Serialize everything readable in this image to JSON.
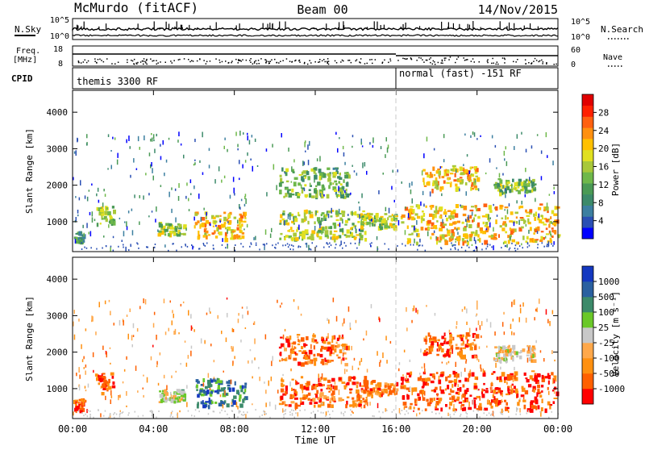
{
  "header": {
    "station": "McMurdo (fitACF)",
    "beam": "Beam 00",
    "date": "14/Nov/2015"
  },
  "top_panels": {
    "nsky": {
      "left_label": "N.Sky",
      "left_ticks": [
        "10^5",
        "10^0"
      ],
      "right_label": "N.Search",
      "right_ticks": [
        "10^5",
        "10^0"
      ]
    },
    "freq": {
      "left_label": "Freq.",
      "left_unit": "[MHz]",
      "left_ticks": [
        "18",
        "8"
      ],
      "right_label": "Nave",
      "right_ticks": [
        "60",
        "0"
      ]
    },
    "cpid": {
      "label": "CPID",
      "segments": [
        {
          "label": "themis 3300 RF",
          "start_hour": 0
        },
        {
          "label": "normal (fast) -151 RF",
          "start_hour": 16
        }
      ]
    }
  },
  "chart_data": [
    {
      "type": "heatmap",
      "name": "power",
      "ylabel": "Slant Range [km]",
      "yticks": [
        1000,
        2000,
        3000,
        4000
      ],
      "ylim": [
        180,
        4600
      ],
      "xlim_hours": [
        0,
        24
      ],
      "colorbar": {
        "label": "Power [dB]",
        "ticks": [
          "4",
          "8",
          "12",
          "16",
          "20",
          "24",
          "28"
        ],
        "range": [
          0,
          32
        ],
        "colors": [
          "#0000ff",
          "#2a4fb4",
          "#3c7fa0",
          "#3c8a6a",
          "#4a9a55",
          "#6fb84a",
          "#a8c83a",
          "#e0e020",
          "#ffc000",
          "#ff9010",
          "#ff6010",
          "#ff2000",
          "#e00000"
        ]
      },
      "echo_regions": [
        {
          "t0": 0.0,
          "t1": 0.6,
          "r0": 450,
          "r1": 750,
          "level": 0.3
        },
        {
          "t0": 1.1,
          "t1": 2.0,
          "r0": 900,
          "r1": 1450,
          "level": 0.5
        },
        {
          "t0": 4.2,
          "t1": 5.5,
          "r0": 650,
          "r1": 1000,
          "level": 0.5
        },
        {
          "t0": 6.0,
          "t1": 8.5,
          "r0": 550,
          "r1": 1300,
          "level": 0.65
        },
        {
          "t0": 10.2,
          "t1": 14.5,
          "r0": 550,
          "r1": 1350,
          "level": 0.5
        },
        {
          "t0": 10.2,
          "t1": 13.6,
          "r0": 1700,
          "r1": 2500,
          "level": 0.4
        },
        {
          "t0": 14.2,
          "t1": 16.0,
          "r0": 850,
          "r1": 1250,
          "level": 0.5
        },
        {
          "t0": 16.2,
          "t1": 24.0,
          "r0": 450,
          "r1": 1500,
          "level": 0.65
        },
        {
          "t0": 17.3,
          "t1": 20.0,
          "r0": 1900,
          "r1": 2550,
          "level": 0.65
        },
        {
          "t0": 20.8,
          "t1": 22.8,
          "r0": 1800,
          "r1": 2200,
          "level": 0.45
        }
      ]
    },
    {
      "type": "heatmap",
      "name": "velocity",
      "ylabel": "Slant Range [km]",
      "yticks": [
        1000,
        2000,
        3000,
        4000
      ],
      "ylim": [
        180,
        4600
      ],
      "xlim_hours": [
        0,
        24
      ],
      "xticks": [
        "00:00",
        "04:00",
        "08:00",
        "12:00",
        "16:00",
        "20:00",
        "00:00"
      ],
      "xlabel": "Time UT",
      "colorbar": {
        "label": "Velocity [m s⁻¹]",
        "ticks": [
          "-1000",
          "-500",
          "-100",
          "-25",
          "25",
          "100",
          "500",
          "1000"
        ],
        "colors": [
          "#ff0000",
          "#ff6000",
          "#ff9010",
          "#ffa84a",
          "#c8c8c8",
          "#6ac828",
          "#3c8a6a",
          "#2a60a0",
          "#1438c0"
        ]
      },
      "echo_regions": [
        {
          "t0": 0.0,
          "t1": 0.6,
          "r0": 450,
          "r1": 750,
          "level": 0.15
        },
        {
          "t0": 1.1,
          "t1": 2.0,
          "r0": 900,
          "r1": 1450,
          "level": 0.15
        },
        {
          "t0": 4.2,
          "t1": 5.5,
          "r0": 650,
          "r1": 1000,
          "level": 0.55
        },
        {
          "t0": 6.0,
          "t1": 8.5,
          "r0": 550,
          "r1": 1300,
          "level": 0.75
        },
        {
          "t0": 10.2,
          "t1": 14.5,
          "r0": 550,
          "r1": 1350,
          "level": 0.2
        },
        {
          "t0": 10.2,
          "t1": 13.6,
          "r0": 1700,
          "r1": 2500,
          "level": 0.2
        },
        {
          "t0": 14.2,
          "t1": 16.0,
          "r0": 850,
          "r1": 1250,
          "level": 0.25
        },
        {
          "t0": 16.2,
          "t1": 24.0,
          "r0": 450,
          "r1": 1500,
          "level": 0.15
        },
        {
          "t0": 17.3,
          "t1": 20.0,
          "r0": 1900,
          "r1": 2550,
          "level": 0.2
        },
        {
          "t0": 20.8,
          "t1": 22.8,
          "r0": 1800,
          "r1": 2200,
          "level": 0.45
        }
      ]
    }
  ]
}
